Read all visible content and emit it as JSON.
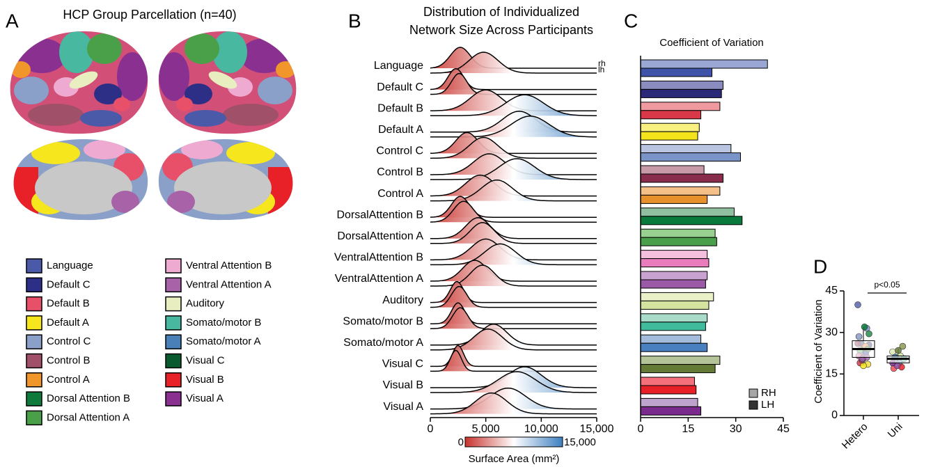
{
  "figure_a": {
    "label": "A",
    "title": "HCP Group Parcellation (n=40)",
    "legend": [
      {
        "name": "Language",
        "color": "#4a5aa8"
      },
      {
        "name": "Default C",
        "color": "#2d2f86"
      },
      {
        "name": "Default B",
        "color": "#e8506a"
      },
      {
        "name": "Default A",
        "color": "#f5e61e"
      },
      {
        "name": "Control C",
        "color": "#8aa0c8"
      },
      {
        "name": "Control B",
        "color": "#a05068"
      },
      {
        "name": "Control A",
        "color": "#f0962a"
      },
      {
        "name": "Dorsal Attention B",
        "color": "#0e7a3c"
      },
      {
        "name": "Dorsal Attention A",
        "color": "#4aa048"
      },
      {
        "name": "Ventral Attention B",
        "color": "#eeaad0"
      },
      {
        "name": "Ventral Attention A",
        "color": "#a862a8"
      },
      {
        "name": "Auditory",
        "color": "#e8eec0"
      },
      {
        "name": "Somato/motor B",
        "color": "#48b8a0"
      },
      {
        "name": "Somato/motor A",
        "color": "#4a80b8"
      },
      {
        "name": "Visual C",
        "color": "#0a5a30"
      },
      {
        "name": "Visual B",
        "color": "#e82028"
      },
      {
        "name": "Visual A",
        "color": "#8a3090"
      }
    ]
  },
  "chart_data": [
    {
      "type": "ridgeline",
      "label": "B",
      "title": [
        "Distribution of Individualized",
        "Network Size Across Participants"
      ],
      "categories": [
        "Language",
        "Default C",
        "Default B",
        "Default A",
        "Control C",
        "Control B",
        "Control A",
        "DorsalAttention B",
        "DorsalAttention A",
        "VentralAttention B",
        "VentralAttention A",
        "Auditory",
        "Somato/motor B",
        "Somato/motor A",
        "Visual C",
        "Visual B",
        "Visual A"
      ],
      "series": [
        {
          "name": "rh",
          "values": [
            2700,
            2300,
            5000,
            8000,
            3300,
            5300,
            4500,
            2700,
            4300,
            5000,
            4000,
            2400,
            2500,
            5700,
            2500,
            8500,
            7000
          ],
          "spread": [
            900,
            700,
            1400,
            1500,
            1000,
            1400,
            1300,
            800,
            1100,
            1300,
            1100,
            600,
            600,
            1200,
            500,
            1500,
            1600
          ]
        },
        {
          "name": "lh",
          "values": [
            4800,
            2600,
            8500,
            9000,
            4800,
            7800,
            6000,
            3000,
            4700,
            6300,
            4700,
            2600,
            2700,
            5200,
            2300,
            7800,
            5500
          ],
          "spread": [
            1300,
            700,
            1700,
            1700,
            1300,
            1600,
            1400,
            900,
            1100,
            1400,
            1100,
            700,
            700,
            1300,
            500,
            1700,
            1400
          ]
        }
      ],
      "xlim": [
        0,
        15000
      ],
      "xticks": [
        0,
        {
          "value": 5000,
          "label": "5,000"
        },
        {
          "value": 10000,
          "label": "10,000"
        },
        {
          "value": 15000,
          "label": "15,000"
        }
      ],
      "colormap": [
        "#c8322c",
        "#ffffff",
        "#3d7fc0"
      ],
      "colorbar_ticks": [
        0,
        {
          "value": 15000,
          "label": "15,000"
        }
      ],
      "colorbar_label": "Surface Area (mm²)"
    },
    {
      "type": "hbar",
      "label": "C",
      "title": "Coefficient of Variation",
      "series": [
        {
          "name": "RH",
          "color": "#a6a6a6",
          "values": [
            40,
            26,
            25,
            18.5,
            28.5,
            20,
            25,
            29.5,
            23.5,
            21,
            21,
            23,
            21,
            19,
            25,
            17,
            18
          ],
          "colors": [
            "#9aa6d4",
            "#8a8cc0",
            "#f09aa0",
            "#f8f080",
            "#b8c4e0",
            "#c89aa8",
            "#f5c088",
            "#90c0a0",
            "#98d090",
            "#f4bedd",
            "#c8a2d0",
            "#eaf0c8",
            "#a8dcc8",
            "#a4bcdc",
            "#b4c498",
            "#f4707a",
            "#bea4cc"
          ]
        },
        {
          "name": "LH",
          "color": "#333333",
          "values": [
            22.5,
            25.5,
            19,
            18,
            31.5,
            26,
            21,
            32,
            24,
            21.5,
            20.5,
            21.5,
            20.5,
            21,
            23.5,
            17.5,
            19
          ],
          "colors": [
            "#3f54a8",
            "#2a2a78",
            "#d83848",
            "#f4e41c",
            "#7a94c8",
            "#8a2c4c",
            "#e8902c",
            "#0a7a3c",
            "#4aa04a",
            "#e87cbc",
            "#9a5aa8",
            "#d4e4a0",
            "#40bc9c",
            "#4880c0",
            "#667a38",
            "#e82028",
            "#7a2a8c"
          ]
        }
      ],
      "xlim": [
        0,
        45
      ],
      "xticks": [
        0,
        15,
        30,
        45
      ]
    },
    {
      "type": "box",
      "label": "D",
      "ylabel": "Coefficient of Variation",
      "annotation": "p<0.05",
      "categories": [
        "Hetero",
        "Uni"
      ],
      "boxes": [
        {
          "low": 18,
          "q1": 21,
          "median": 24,
          "q3": 27,
          "high": 32
        },
        {
          "low": 17,
          "q1": 19,
          "median": 20.5,
          "q3": 21.5,
          "high": 24
        }
      ],
      "points": [
        [
          40,
          22.5,
          26,
          25.5,
          25,
          19,
          18.5,
          18,
          28.5,
          31.5,
          20,
          26,
          25,
          21,
          29.5,
          32,
          23.5,
          24,
          21,
          21.5,
          21,
          20.5
        ],
        [
          23,
          21.5,
          21,
          20.5,
          19,
          21,
          25,
          23.5,
          17,
          17.5,
          18,
          19
        ]
      ],
      "point_colors": [
        [
          "#5a66a8",
          "#3f54a8",
          "#4a4a90",
          "#2a2a78",
          "#e0707a",
          "#d83848",
          "#f0e040",
          "#f4e41c",
          "#8a9cc8",
          "#7a94c8",
          "#a04a68",
          "#8a2c4c",
          "#f0a050",
          "#e8902c",
          "#2a8a50",
          "#0a7a3c",
          "#60b060",
          "#4aa04a",
          "#f08cc8",
          "#e87cbc",
          "#a870b0",
          "#9a5aa8"
        ],
        [
          "#dce8b0",
          "#d4e4a0",
          "#60c8a8",
          "#40bc9c",
          "#6a94c8",
          "#4880c0",
          "#8a9a50",
          "#667a38",
          "#f05058",
          "#e82028",
          "#9a50a8",
          "#7a2a8c"
        ]
      ],
      "ylim": [
        0,
        45
      ],
      "yticks": [
        0,
        15,
        30,
        45
      ]
    }
  ]
}
